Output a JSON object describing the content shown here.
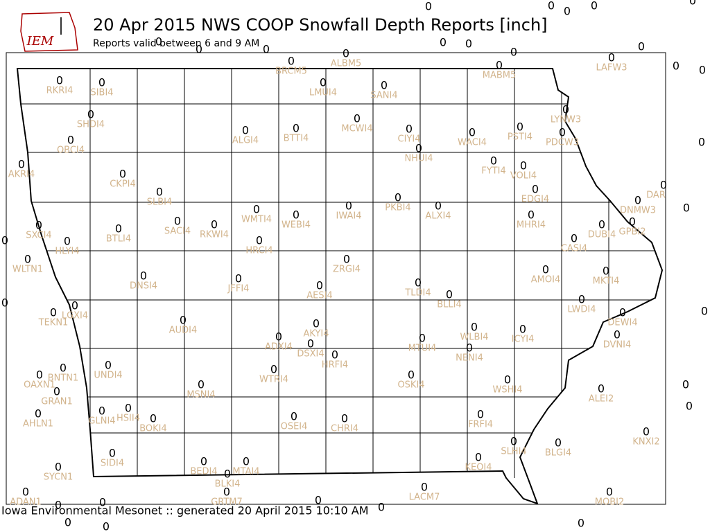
{
  "header": {
    "logo_text": "IEM",
    "title": "20 Apr 2015 NWS COOP Snowfall Depth Reports [inch]",
    "subtitle": "Reports valid between 6 and 9 AM"
  },
  "footer": "Iowa Environmental Mesonet :: generated 20 April 2015 10:10 AM",
  "stations": [
    {
      "id": "RKRI4",
      "value": 0
    },
    {
      "id": "SIBI4",
      "value": 0
    },
    {
      "id": "SHDI4",
      "value": 0
    },
    {
      "id": "OBCI4",
      "value": 0
    },
    {
      "id": "AKRI4",
      "value": 0
    },
    {
      "id": "CKPI4",
      "value": 0
    },
    {
      "id": "SLBI4",
      "value": 0
    },
    {
      "id": "SACI4",
      "value": 0
    },
    {
      "id": "RKWI4",
      "value": 0
    },
    {
      "id": "BTLI4",
      "value": 0
    },
    {
      "id": "SXCI4",
      "value": 0
    },
    {
      "id": "HLYI4",
      "value": 0
    },
    {
      "id": "WLTN1",
      "value": 0
    },
    {
      "id": "DNSI4",
      "value": 0
    },
    {
      "id": "JFFI4",
      "value": 0
    },
    {
      "id": "WMTI4",
      "value": 0
    },
    {
      "id": "HRCI4",
      "value": 0
    },
    {
      "id": "WEBI4",
      "value": 0
    },
    {
      "id": "IWAI4",
      "value": 0
    },
    {
      "id": "PKBI4",
      "value": 0
    },
    {
      "id": "ALXI4",
      "value": 0
    },
    {
      "id": "ALGI4",
      "value": 0
    },
    {
      "id": "BTTI4",
      "value": 0
    },
    {
      "id": "MCWI4",
      "value": 0
    },
    {
      "id": "CIYI4",
      "value": 0
    },
    {
      "id": "NHUI4",
      "value": 0
    },
    {
      "id": "WACI4",
      "value": 0
    },
    {
      "id": "PSTI4",
      "value": 0
    },
    {
      "id": "FYTI4",
      "value": 0
    },
    {
      "id": "VOLI4",
      "value": 0
    },
    {
      "id": "EDGI4",
      "value": 0
    },
    {
      "id": "MHRI4",
      "value": 0
    },
    {
      "id": "LYNW3",
      "value": 0
    },
    {
      "id": "PDCW3",
      "value": 0
    },
    {
      "id": "LAFW3",
      "value": 0
    },
    {
      "id": "MABM5",
      "value": 0
    },
    {
      "id": "LMUI4",
      "value": 0
    },
    {
      "id": "SANI4",
      "value": 0
    },
    {
      "id": "ALBM5",
      "value": 0
    },
    {
      "id": "BRCM5",
      "value": 0
    },
    {
      "id": "DUBI4",
      "value": 0
    },
    {
      "id": "GPBI2",
      "value": 0
    },
    {
      "id": "DNMW3",
      "value": 0
    },
    {
      "id": "DAR",
      "value": 0
    },
    {
      "id": "CASI4",
      "value": 0
    },
    {
      "id": "AMOI4",
      "value": 0
    },
    {
      "id": "MKTI4",
      "value": 0
    },
    {
      "id": "LWDI4",
      "value": 0
    },
    {
      "id": "DEWI4",
      "value": 0
    },
    {
      "id": "DVNI4",
      "value": 0
    },
    {
      "id": "TLDI4",
      "value": 0
    },
    {
      "id": "BLLI4",
      "value": 0
    },
    {
      "id": "ZRGI4",
      "value": 0
    },
    {
      "id": "AESI4",
      "value": 0
    },
    {
      "id": "LGXI4",
      "value": 0
    },
    {
      "id": "TEKN1",
      "value": 0
    },
    {
      "id": "AUDI4",
      "value": 0
    },
    {
      "id": "AKYI4",
      "value": 0
    },
    {
      "id": "ADXI4",
      "value": 0
    },
    {
      "id": "DSXI4",
      "value": 0
    },
    {
      "id": "HRFI4",
      "value": 0
    },
    {
      "id": "WLBI4",
      "value": 0
    },
    {
      "id": "MTUI4",
      "value": 0
    },
    {
      "id": "NENI4",
      "value": 0
    },
    {
      "id": "ICYI4",
      "value": 0
    },
    {
      "id": "UNDI4",
      "value": 0
    },
    {
      "id": "BNTN1",
      "value": 0
    },
    {
      "id": "OAXN1",
      "value": 0
    },
    {
      "id": "GRAN1",
      "value": 0
    },
    {
      "id": "WTRI4",
      "value": 0
    },
    {
      "id": "MSNI4",
      "value": 0
    },
    {
      "id": "OSKI4",
      "value": 0
    },
    {
      "id": "WSHI4",
      "value": 0
    },
    {
      "id": "ALEI2",
      "value": 0
    },
    {
      "id": "AHLN1",
      "value": 0
    },
    {
      "id": "GLNI4",
      "value": 0
    },
    {
      "id": "HSII4",
      "value": 0
    },
    {
      "id": "BOKI4",
      "value": 0
    },
    {
      "id": "OSEI4",
      "value": 0
    },
    {
      "id": "CHRI4",
      "value": 0
    },
    {
      "id": "FRFI4",
      "value": 0
    },
    {
      "id": "KNXI2",
      "value": 0
    },
    {
      "id": "SLHI4",
      "value": 0
    },
    {
      "id": "BLGI4",
      "value": 0
    },
    {
      "id": "SIDI4",
      "value": 0
    },
    {
      "id": "BEDI4",
      "value": 0
    },
    {
      "id": "MTAI4",
      "value": 0
    },
    {
      "id": "KEOI4",
      "value": 0
    },
    {
      "id": "BLKI4",
      "value": 0
    },
    {
      "id": "GRTM7",
      "value": 0
    },
    {
      "id": "SYCN1",
      "value": 0
    },
    {
      "id": "ADAN1",
      "value": 0
    },
    {
      "id": "LACM7",
      "value": 0
    },
    {
      "id": "MOBI2",
      "value": 0
    },
    {
      "value": 0
    },
    {
      "value": 0
    },
    {
      "value": 0
    },
    {
      "value": 0
    },
    {
      "value": 0
    },
    {
      "value": 0
    },
    {
      "value": 0
    },
    {
      "value": 0
    },
    {
      "value": 0
    },
    {
      "value": 0
    },
    {
      "value": 0
    },
    {
      "value": 0
    },
    {
      "value": 0
    },
    {
      "value": 0
    },
    {
      "value": 0
    },
    {
      "value": 0
    },
    {
      "value": 0
    },
    {
      "value": 0
    },
    {
      "value": 0
    },
    {
      "value": 0
    },
    {
      "value": 0
    },
    {
      "value": 0
    },
    {
      "value": 0
    },
    {
      "value": 0
    },
    {
      "value": 0
    },
    {
      "value": 0
    },
    {
      "value": 0
    },
    {
      "value": 0
    }
  ]
}
